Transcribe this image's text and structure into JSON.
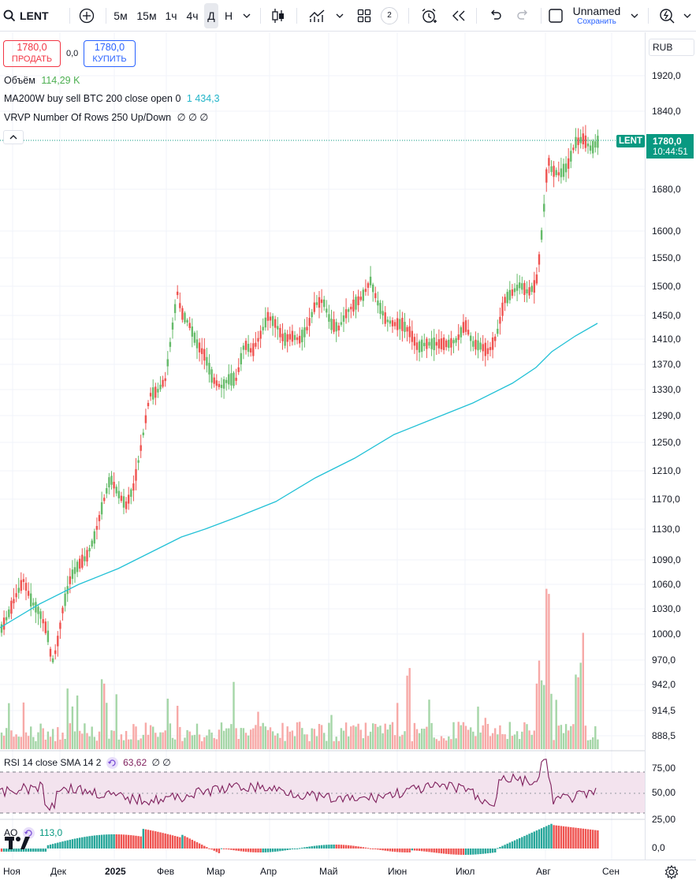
{
  "toolbar": {
    "symbol": "LENT",
    "intervals": [
      "5м",
      "15м",
      "1ч",
      "4ч",
      "Д",
      "Н"
    ],
    "active_interval": "Д",
    "layout_count": "2",
    "layout_name": "Unnamed",
    "save_label": "Сохранить"
  },
  "trade": {
    "sell_price": "1780,0",
    "sell_label": "ПРОДАТЬ",
    "spread": "0,0",
    "buy_price": "1780,0",
    "buy_label": "КУПИТЬ"
  },
  "legend": {
    "volume_label": "Объём",
    "volume_value": "114,29 K",
    "ma_label": "MA200W buy sell BTC 200 close open 0",
    "ma_value": "1 434,3",
    "vrvp_label": "VRVP Number Of Rows 250 Up/Down",
    "vrvp_values": "∅ ∅ ∅"
  },
  "price_scale": {
    "currency": "RUB",
    "ticks": [
      "1920,0",
      "1840,0",
      "1680,0",
      "1600,0",
      "1550,0",
      "1500,0",
      "1450,0",
      "1410,0",
      "1370,0",
      "1330,0",
      "1290,0",
      "1250,0",
      "1210,0",
      "1170,0",
      "1130,0",
      "1090,0",
      "1060,0",
      "1030,0",
      "1000,0",
      "970,0",
      "942,0",
      "914,5",
      "888,5"
    ],
    "last_symbol": "LENT",
    "last_price": "1780,0",
    "countdown": "10:44:51"
  },
  "rsi": {
    "label": "RSI 14 close SMA 14 2",
    "value": "63,62",
    "extra": "∅ ∅",
    "ticks": [
      "75,00",
      "50,00",
      "25,00"
    ]
  },
  "ao": {
    "label": "AO",
    "value": "113,0",
    "tick": "0,0"
  },
  "time_axis": {
    "labels": [
      "Ноя",
      "Дек",
      "2025",
      "Фев",
      "Мар",
      "Апр",
      "Май",
      "Июн",
      "Июл",
      "Авг",
      "Сен"
    ]
  },
  "colors": {
    "up": "#66bb6a",
    "down": "#ef5350",
    "ma": "#22c1d6",
    "accent": "#2962ff",
    "rsi": "#7e1f5c",
    "last_price_bg": "#089981"
  }
}
